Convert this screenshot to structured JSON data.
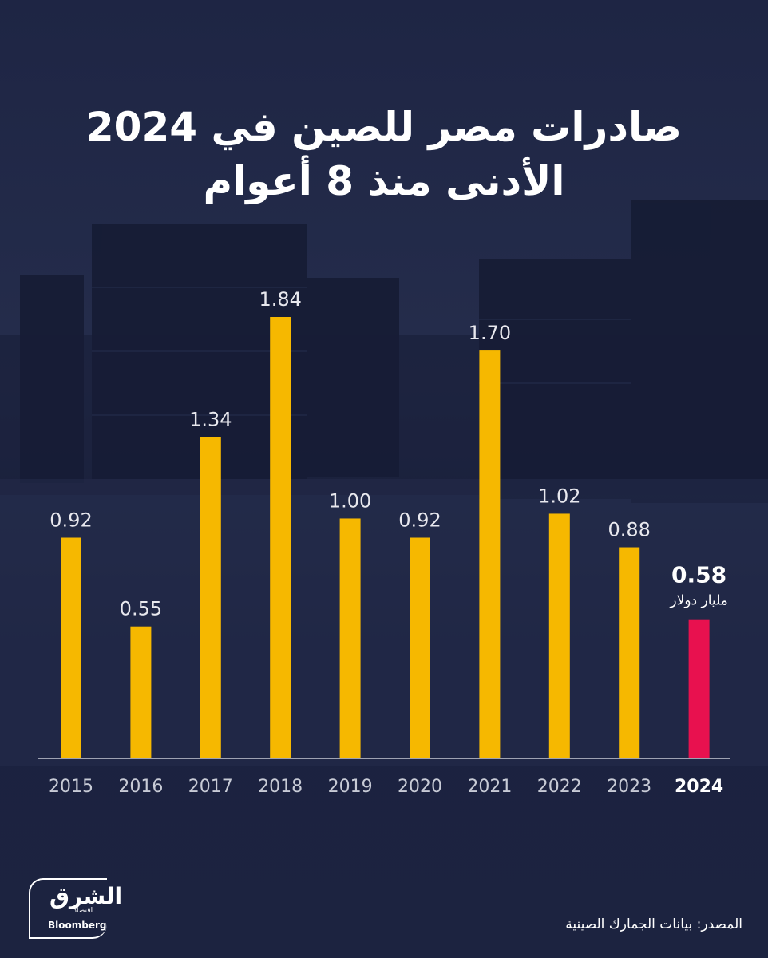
{
  "title_line1": "صادرات مصر للصين في 2024",
  "title_line2": "الأدنى منذ 8 أعوام",
  "source_text": "المصدر: بيانات الجمارك الصينية",
  "logo": {
    "arabic_name": "الشرق",
    "sub": "اقتصاد",
    "partner": "Bloomberg"
  },
  "colors": {
    "bar": "#f6b800",
    "bar_dark": "#e8a400",
    "highlight": "#e8114f",
    "label": "#e8e8ee",
    "axis": "#c8cbd6"
  },
  "chart_data": {
    "type": "bar",
    "categories": [
      "2015",
      "2016",
      "2017",
      "2018",
      "2019",
      "2020",
      "2021",
      "2022",
      "2023",
      "2024"
    ],
    "values": [
      0.92,
      0.55,
      1.34,
      1.84,
      1.0,
      0.92,
      1.7,
      1.02,
      0.88,
      0.58
    ],
    "value_labels": [
      "0.92",
      "0.55",
      "1.34",
      "1.84",
      "1.00",
      "0.92",
      "1.70",
      "1.02",
      "0.88",
      "0.58"
    ],
    "highlight_index": 9,
    "highlight_unit": "مليار دولار",
    "title": "صادرات مصر للصين في 2024 الأدنى منذ 8 أعوام",
    "ylim": [
      0,
      1.84
    ],
    "xlabel": "",
    "ylabel": ""
  }
}
